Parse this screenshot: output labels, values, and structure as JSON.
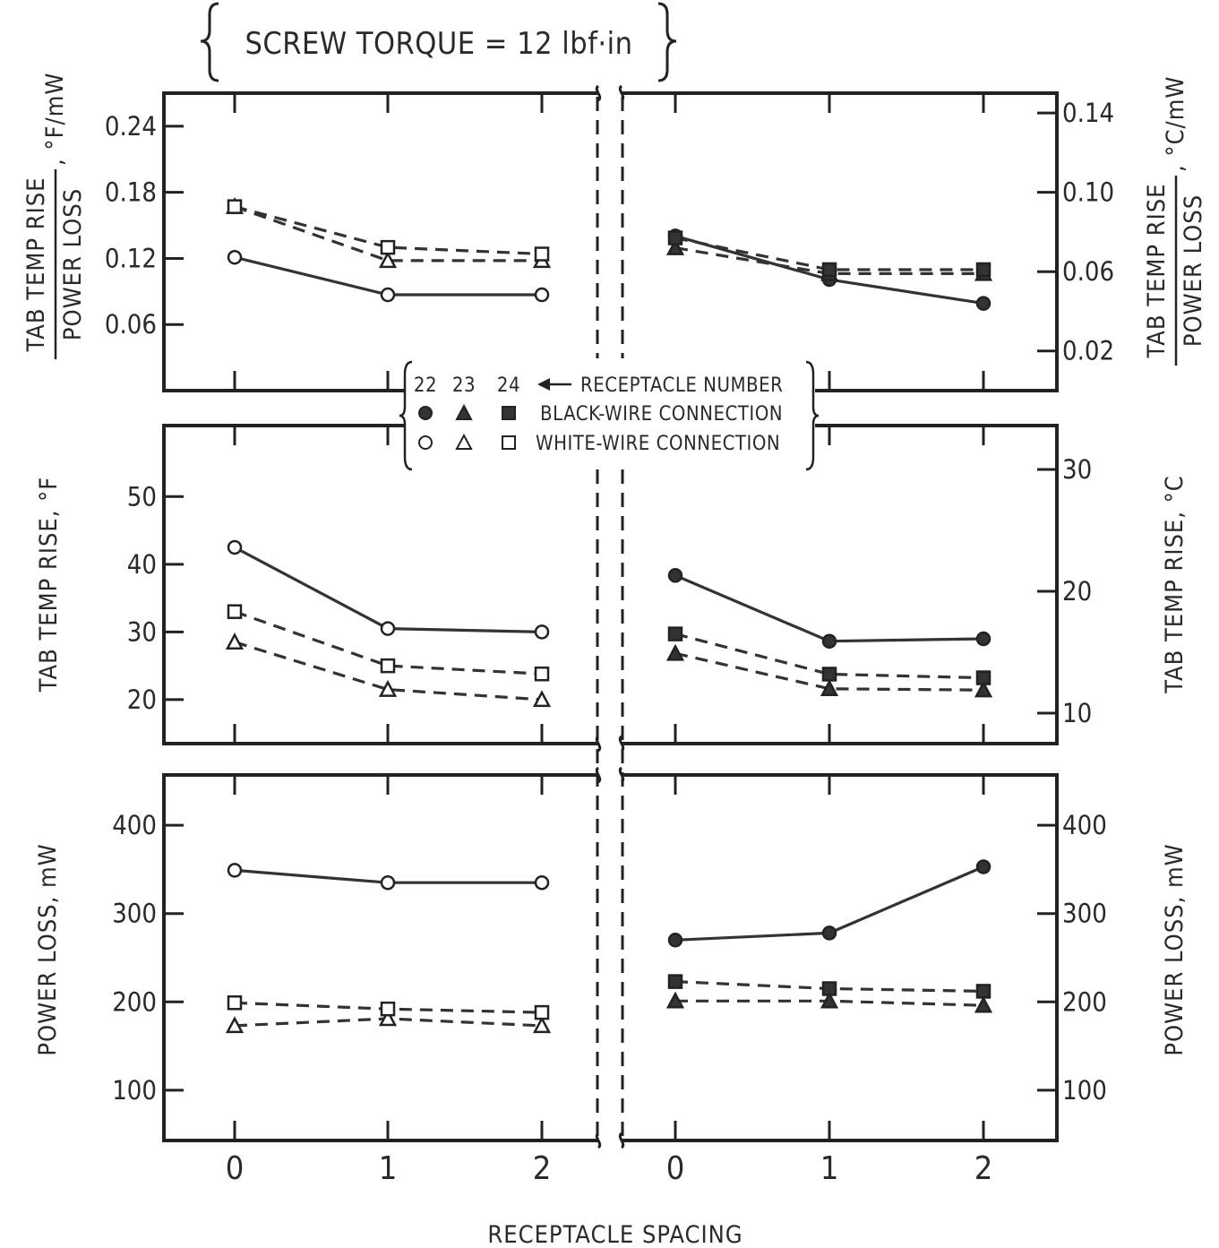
{
  "chart_data": {
    "title": "SCREW TORQUE = 12 lbf·in",
    "xlabel": "RECEPTACLE SPACING",
    "x_ticks": [
      "0",
      "1",
      "2",
      "0",
      "1",
      "2"
    ],
    "legend": {
      "header_numbers": [
        "22",
        "23",
        "24"
      ],
      "header_label": "RECEPTACLE NUMBER",
      "black_label": "BLACK-WIRE CONNECTION",
      "white_label": "WHITE-WIRE CONNECTION"
    },
    "panels": [
      {
        "type": "line",
        "ylabel_left_top": "TAB TEMP RISE",
        "ylabel_left_bottom": "POWER LOSS",
        "ylabel_left_unit": ", °F/mW",
        "ylabel_right_top": "TAB TEMP RISE",
        "ylabel_right_bottom": "POWER LOSS",
        "ylabel_right_unit": ", °C/mW",
        "left_ylim": [
          0.0,
          0.27
        ],
        "left_ticks": [
          "0.06",
          "0.12",
          "0.18",
          "0.24"
        ],
        "right_ylim": [
          0.0,
          0.15
        ],
        "right_ticks": [
          "0.02",
          "0.06",
          "0.10",
          "0.14"
        ],
        "series": [
          {
            "group": "white",
            "receptacle": "22",
            "marker": "circle",
            "filled": false,
            "dashed": false,
            "x": [
              0,
              1,
              2
            ],
            "y": [
              0.121,
              0.087,
              0.087
            ]
          },
          {
            "group": "white",
            "receptacle": "23",
            "marker": "triangle",
            "filled": false,
            "dashed": true,
            "x": [
              0,
              1,
              2
            ],
            "y": [
              0.167,
              0.118,
              0.118
            ]
          },
          {
            "group": "white",
            "receptacle": "24",
            "marker": "square",
            "filled": false,
            "dashed": true,
            "x": [
              0,
              1,
              2
            ],
            "y": [
              0.167,
              0.13,
              0.124
            ]
          },
          {
            "group": "black",
            "receptacle": "22",
            "marker": "circle",
            "filled": true,
            "dashed": false,
            "x": [
              0,
              1,
              2
            ],
            "y": [
              0.078,
              0.056,
              0.044
            ]
          },
          {
            "group": "black",
            "receptacle": "23",
            "marker": "triangle",
            "filled": true,
            "dashed": true,
            "x": [
              0,
              1,
              2
            ],
            "y": [
              0.072,
              0.059,
              0.059
            ]
          },
          {
            "group": "black",
            "receptacle": "24",
            "marker": "square",
            "filled": true,
            "dashed": true,
            "x": [
              0,
              1,
              2
            ],
            "y": [
              0.077,
              0.061,
              0.061
            ]
          }
        ]
      },
      {
        "type": "line",
        "ylabel_left": "TAB TEMP RISE, °F",
        "ylabel_right": "TAB TEMP RISE, °C",
        "left_ylim": [
          13.5,
          60.5
        ],
        "left_ticks": [
          "20",
          "30",
          "40",
          "50"
        ],
        "right_ylim": [
          7.5,
          33.6
        ],
        "right_ticks": [
          "10",
          "20",
          "30"
        ],
        "series": [
          {
            "group": "white",
            "receptacle": "22",
            "marker": "circle",
            "filled": false,
            "dashed": false,
            "x": [
              0,
              1,
              2
            ],
            "y": [
              42.5,
              30.5,
              30.0
            ]
          },
          {
            "group": "white",
            "receptacle": "23",
            "marker": "triangle",
            "filled": false,
            "dashed": true,
            "x": [
              0,
              1,
              2
            ],
            "y": [
              28.5,
              21.5,
              20.0
            ]
          },
          {
            "group": "white",
            "receptacle": "24",
            "marker": "square",
            "filled": false,
            "dashed": true,
            "x": [
              0,
              1,
              2
            ],
            "y": [
              33.0,
              25.0,
              23.8
            ]
          },
          {
            "group": "black",
            "receptacle": "22",
            "marker": "circle",
            "filled": true,
            "dashed": false,
            "x": [
              0,
              1,
              2
            ],
            "y": [
              21.3,
              15.9,
              16.1
            ]
          },
          {
            "group": "black",
            "receptacle": "23",
            "marker": "triangle",
            "filled": true,
            "dashed": true,
            "x": [
              0,
              1,
              2
            ],
            "y": [
              14.9,
              12.0,
              11.9
            ]
          },
          {
            "group": "black",
            "receptacle": "24",
            "marker": "square",
            "filled": true,
            "dashed": true,
            "x": [
              0,
              1,
              2
            ],
            "y": [
              16.5,
              13.2,
              12.9
            ]
          }
        ]
      },
      {
        "type": "line",
        "ylabel_left": "POWER LOSS, mW",
        "ylabel_right": "POWER LOSS, mW",
        "left_ylim": [
          43,
          457
        ],
        "left_ticks": [
          "100",
          "200",
          "300",
          "400"
        ],
        "right_ylim": [
          43,
          457
        ],
        "right_ticks": [
          "100",
          "200",
          "300",
          "400"
        ],
        "series": [
          {
            "group": "white",
            "receptacle": "22",
            "marker": "circle",
            "filled": false,
            "dashed": false,
            "x": [
              0,
              1,
              2
            ],
            "y": [
              349,
              335,
              335
            ]
          },
          {
            "group": "white",
            "receptacle": "23",
            "marker": "triangle",
            "filled": false,
            "dashed": true,
            "x": [
              0,
              1,
              2
            ],
            "y": [
              173,
              181,
              173
            ]
          },
          {
            "group": "white",
            "receptacle": "24",
            "marker": "square",
            "filled": false,
            "dashed": true,
            "x": [
              0,
              1,
              2
            ],
            "y": [
              199,
              192,
              188
            ]
          },
          {
            "group": "black",
            "receptacle": "22",
            "marker": "circle",
            "filled": true,
            "dashed": false,
            "x": [
              0,
              1,
              2
            ],
            "y": [
              270,
              278,
              353
            ]
          },
          {
            "group": "black",
            "receptacle": "23",
            "marker": "triangle",
            "filled": true,
            "dashed": true,
            "x": [
              0,
              1,
              2
            ],
            "y": [
              201,
              201,
              196
            ]
          },
          {
            "group": "black",
            "receptacle": "24",
            "marker": "square",
            "filled": true,
            "dashed": true,
            "x": [
              0,
              1,
              2
            ],
            "y": [
              223,
              215,
              212
            ]
          }
        ]
      }
    ]
  }
}
